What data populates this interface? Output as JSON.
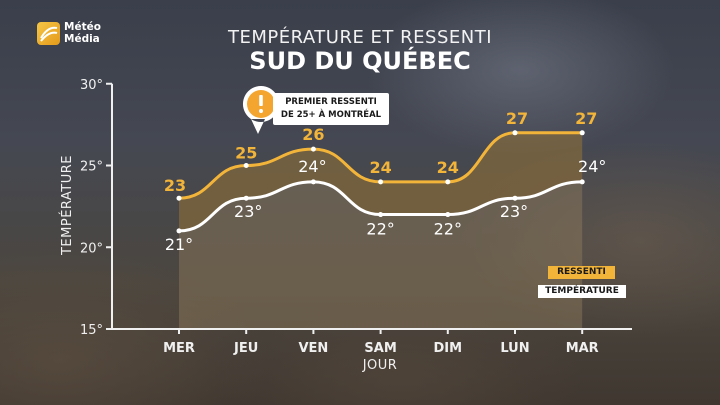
{
  "brand": {
    "line1": "Météo",
    "line2": "Média",
    "accent": "#f3b43a"
  },
  "chart_data": {
    "type": "line",
    "title": "TEMPÉRATURE ET RESSENTI",
    "subtitle": "SUD DU QUÉBEC",
    "xlabel": "JOUR",
    "ylabel": "TEMPÉRATURE",
    "categories": [
      "MER",
      "JEU",
      "VEN",
      "SAM",
      "DIM",
      "LUN",
      "MAR"
    ],
    "ylim": [
      15,
      30
    ],
    "yticks": [
      "15°",
      "20°",
      "25°",
      "30°"
    ],
    "series": [
      {
        "name": "RESSENTI",
        "values": [
          23,
          25,
          26,
          24,
          24,
          27,
          27
        ],
        "labels": [
          "23",
          "25",
          "26",
          "24",
          "24",
          "27",
          "27"
        ],
        "color": "#f3b43a"
      },
      {
        "name": "TEMPÉRATURE",
        "values": [
          21,
          23,
          24,
          22,
          22,
          23,
          24
        ],
        "labels": [
          "21°",
          "23°",
          "24°",
          "22°",
          "22°",
          "23°",
          "24°"
        ],
        "color": "#ffffff"
      }
    ],
    "annotation": {
      "text": "PREMIER RESSENTI\nDE 25+ À MONTRÉAL",
      "icon": "exclamation-icon"
    },
    "legend": {
      "placement": "right",
      "items": [
        "RESSENTI",
        "TEMPÉRATURE"
      ]
    },
    "grid": false
  }
}
